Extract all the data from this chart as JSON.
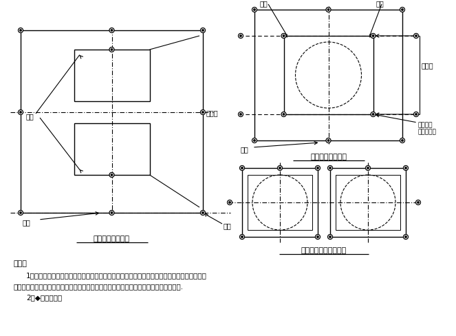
{
  "bg_color": "#ffffff",
  "lc": "#000000",
  "title1": "双柱情况墩柱放线",
  "title2": "单柱情况墩柱放线",
  "title3": "双柱双台情况墩柱放线",
  "note_title": "说明：",
  "note1": "1、墩柱施工，柱的横轴方向线要方，第一次安装，测量要把模板的内口线（即柱的边缘线）定",
  "note2": "出；模板安装到位后，须在模板的四角点处设置定位标志，以便模板上翻安装控制其位置.",
  "note3": "2、◆为测测点。",
  "label_dunzhu_L": "墩柱",
  "label_hengzhou_L": "横轴",
  "label_zhouxian_L": "纵轴线",
  "label_chengtai_L": "承台",
  "label_dunzhu_R": "墩柱",
  "label_chengtai_R": "承台",
  "label_hengzhou_R": "横轴",
  "label_zhouxian_R": "纵轴线",
  "label_mubanzhuang": "模板安装\n高程控制点"
}
